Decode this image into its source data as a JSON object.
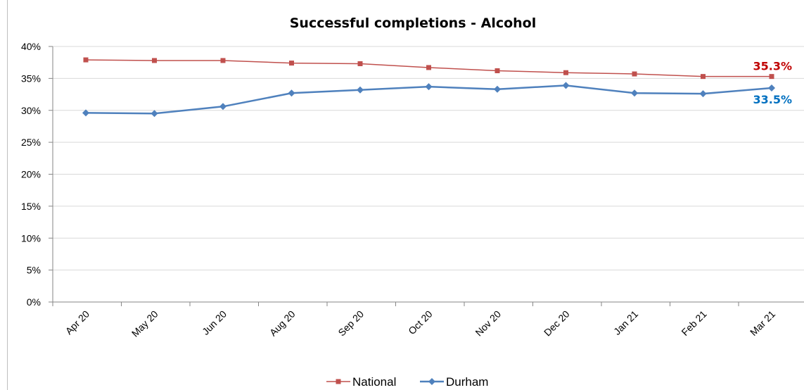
{
  "chart_data": {
    "type": "line",
    "title": "Successful completions  - Alcohol",
    "xlabel": "",
    "ylabel": "",
    "categories": [
      "Apr 20",
      "May 20",
      "Jun 20",
      "Aug 20",
      "Sep 20",
      "Oct 20",
      "Nov 20",
      "Dec 20",
      "Jan 21",
      "Feb 21",
      "Mar 21"
    ],
    "y_ticks": [
      "0%",
      "5%",
      "10%",
      "15%",
      "20%",
      "25%",
      "30%",
      "35%",
      "40%"
    ],
    "ylim": [
      0,
      40
    ],
    "grid": true,
    "legend_position": "bottom",
    "series": [
      {
        "name": "National",
        "color": "#c0504d",
        "marker": "square",
        "values": [
          37.9,
          37.8,
          37.8,
          37.4,
          37.3,
          36.7,
          36.2,
          35.9,
          35.7,
          35.3,
          35.3
        ],
        "end_label": "35.3%",
        "end_label_color": "#c00000"
      },
      {
        "name": "Durham",
        "color": "#4f81bd",
        "marker": "diamond",
        "values": [
          29.6,
          29.5,
          30.6,
          32.7,
          33.2,
          33.7,
          33.3,
          33.9,
          32.7,
          32.6,
          33.5
        ],
        "end_label": "33.5%",
        "end_label_color": "#0070c0"
      }
    ]
  }
}
